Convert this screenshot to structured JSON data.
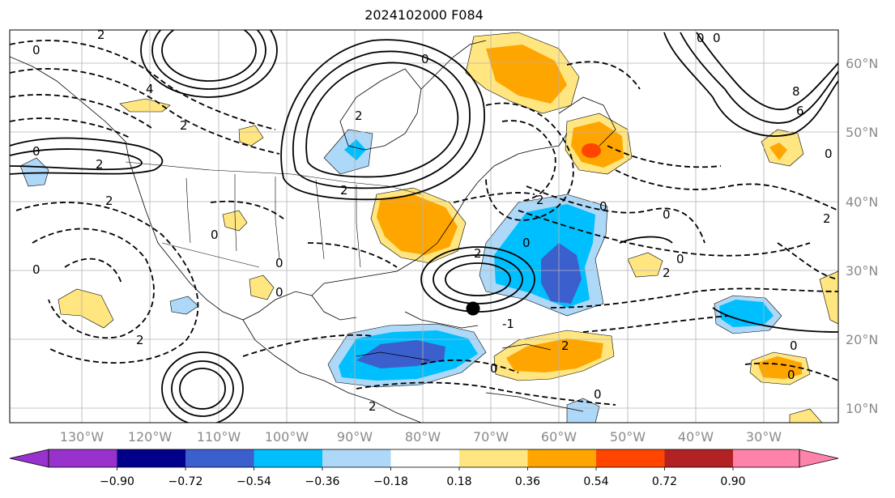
{
  "title": "2024102000 F084",
  "map": {
    "lon_labels": [
      "130°W",
      "120°W",
      "110°W",
      "100°W",
      "90°W",
      "80°W",
      "70°W",
      "60°W",
      "50°W",
      "40°W",
      "30°W"
    ],
    "lat_labels": [
      "60°N",
      "50°N",
      "40°N",
      "30°N",
      "20°N",
      "10°N"
    ],
    "contour_labels": [
      "0",
      "2",
      "4",
      "2",
      "0",
      "2",
      "0",
      "2",
      "0",
      "2",
      "2",
      "0",
      "0",
      "0",
      "2",
      "2",
      "0",
      "0",
      "2",
      "0",
      "0",
      "0",
      "2",
      "0",
      "2",
      "0",
      "0",
      "8",
      "6",
      "0",
      "0",
      "2",
      "0",
      "-1",
      "2"
    ],
    "storm_marker": "storm-center-dot"
  },
  "colorbar": {
    "colors": [
      "#9932cc",
      "#00008b",
      "#3b5fcd",
      "#00bfff",
      "#add8f8",
      "#ffffff",
      "#ffe680",
      "#ffa500",
      "#ff4500",
      "#b22222",
      "#ff82ab"
    ],
    "tick_labels": [
      "−0.90",
      "−0.72",
      "−0.54",
      "−0.36",
      "−0.18",
      "0.18",
      "0.36",
      "0.54",
      "0.72",
      "0.90"
    ]
  }
}
